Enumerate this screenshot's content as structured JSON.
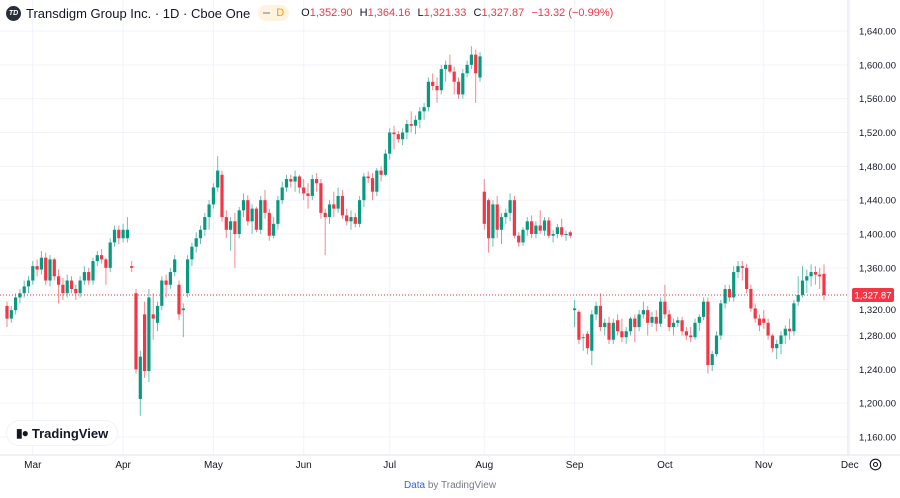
{
  "header": {
    "logo_text": "TD",
    "title": "Transdigm Group Inc. · 1D · Cboe One",
    "badge": "D",
    "ohlc": {
      "o_label": "O",
      "o": "1,352.90",
      "h_label": "H",
      "h": "1,364.16",
      "l_label": "L",
      "l": "1,321.33",
      "c_label": "C",
      "c": "1,327.87",
      "change": "−13.32 (−0.99%)"
    }
  },
  "watermark": {
    "text": "TradingView",
    "icon": "tradingview-logo-icon"
  },
  "footer": {
    "link": "Data",
    "text": " by TradingView"
  },
  "icons": {
    "settings": "gear-icon"
  },
  "colors": {
    "up": "#089981",
    "down": "#f23645",
    "grid": "#f0f3fa",
    "axis_text": "#131722",
    "price_line": "#f23645"
  },
  "chart_data": {
    "type": "candlestick",
    "y_ticks": [
      "1,160.00",
      "1,200.00",
      "1,240.00",
      "1,280.00",
      "1,320.00",
      "1,360.00",
      "1,400.00",
      "1,440.00",
      "1,480.00",
      "1,520.00",
      "1,560.00",
      "1,600.00",
      "1,640.00"
    ],
    "ylim": [
      1160,
      1640
    ],
    "x_ticks": [
      {
        "label": "Mar",
        "date": "2025-03"
      },
      {
        "label": "Apr",
        "date": "2025-04"
      },
      {
        "label": "May",
        "date": "2025-05"
      },
      {
        "label": "Jun",
        "date": "2025-06"
      },
      {
        "label": "Jul",
        "date": "2025-07"
      },
      {
        "label": "Aug",
        "date": "2025-08"
      },
      {
        "label": "Sep",
        "date": "2025-09"
      },
      {
        "label": "Oct",
        "date": "2025-10"
      },
      {
        "label": "Nov",
        "date": "2025-11"
      },
      {
        "label": "Dec",
        "date": "2025-12"
      }
    ],
    "last_price": 1327.87,
    "last_price_label": "1,327.87",
    "grid": true,
    "columns": [
      "date",
      "open",
      "high",
      "low",
      "close"
    ],
    "candles": [
      [
        "02-21",
        1315,
        1320,
        1290,
        1300
      ],
      [
        "02-24",
        1300,
        1315,
        1295,
        1310
      ],
      [
        "02-25",
        1310,
        1330,
        1305,
        1325
      ],
      [
        "02-26",
        1325,
        1335,
        1318,
        1330
      ],
      [
        "02-27",
        1330,
        1345,
        1325,
        1338
      ],
      [
        "02-28",
        1338,
        1350,
        1330,
        1345
      ],
      [
        "03-03",
        1345,
        1368,
        1340,
        1362
      ],
      [
        "03-04",
        1362,
        1370,
        1350,
        1358
      ],
      [
        "03-05",
        1358,
        1380,
        1352,
        1372
      ],
      [
        "03-06",
        1372,
        1378,
        1340,
        1345
      ],
      [
        "03-07",
        1345,
        1375,
        1338,
        1370
      ],
      [
        "03-10",
        1370,
        1372,
        1345,
        1350
      ],
      [
        "03-11",
        1350,
        1358,
        1318,
        1340
      ],
      [
        "03-12",
        1340,
        1348,
        1322,
        1330
      ],
      [
        "03-13",
        1330,
        1352,
        1325,
        1345
      ],
      [
        "03-14",
        1345,
        1350,
        1330,
        1335
      ],
      [
        "03-17",
        1335,
        1340,
        1322,
        1330
      ],
      [
        "03-18",
        1330,
        1350,
        1325,
        1345
      ],
      [
        "03-19",
        1345,
        1362,
        1340,
        1355
      ],
      [
        "03-20",
        1355,
        1360,
        1340,
        1345
      ],
      [
        "03-21",
        1345,
        1372,
        1340,
        1368
      ],
      [
        "03-24",
        1368,
        1380,
        1362,
        1375
      ],
      [
        "03-25",
        1375,
        1382,
        1365,
        1370
      ],
      [
        "03-26",
        1370,
        1372,
        1340,
        1360
      ],
      [
        "03-27",
        1360,
        1395,
        1355,
        1390
      ],
      [
        "03-28",
        1390,
        1410,
        1385,
        1405
      ],
      [
        "03-31",
        1405,
        1410,
        1388,
        1395
      ],
      [
        "04-01",
        1395,
        1412,
        1390,
        1405
      ],
      [
        "04-02",
        1395,
        1420,
        1390,
        1405
      ],
      [
        "04-03",
        1362,
        1368,
        1355,
        1360
      ],
      [
        "04-04",
        1330,
        1335,
        1235,
        1240
      ],
      [
        "04-07",
        1205,
        1262,
        1185,
        1255
      ],
      [
        "04-08",
        1305,
        1320,
        1230,
        1238
      ],
      [
        "04-09",
        1238,
        1335,
        1225,
        1325
      ],
      [
        "04-10",
        1305,
        1330,
        1275,
        1300
      ],
      [
        "04-11",
        1295,
        1320,
        1285,
        1315
      ],
      [
        "04-14",
        1315,
        1350,
        1310,
        1345
      ],
      [
        "04-15",
        1345,
        1352,
        1325,
        1340
      ],
      [
        "04-16",
        1340,
        1360,
        1335,
        1355
      ],
      [
        "04-17",
        1355,
        1375,
        1350,
        1370
      ],
      [
        "04-21",
        1340,
        1345,
        1298,
        1305
      ],
      [
        "04-22",
        1310,
        1318,
        1278,
        1312
      ],
      [
        "04-23",
        1330,
        1375,
        1325,
        1370
      ],
      [
        "04-24",
        1370,
        1390,
        1362,
        1385
      ],
      [
        "04-25",
        1385,
        1402,
        1378,
        1395
      ],
      [
        "04-28",
        1395,
        1410,
        1388,
        1405
      ],
      [
        "04-29",
        1405,
        1425,
        1398,
        1420
      ],
      [
        "04-30",
        1420,
        1440,
        1405,
        1435
      ],
      [
        "05-01",
        1435,
        1460,
        1430,
        1455
      ],
      [
        "05-02",
        1455,
        1492,
        1450,
        1475
      ],
      [
        "05-05",
        1470,
        1475,
        1415,
        1420
      ],
      [
        "05-06",
        1420,
        1428,
        1395,
        1405
      ],
      [
        "05-07",
        1405,
        1420,
        1380,
        1415
      ],
      [
        "05-08",
        1415,
        1425,
        1360,
        1400
      ],
      [
        "05-09",
        1400,
        1432,
        1395,
        1428
      ],
      [
        "05-12",
        1428,
        1448,
        1420,
        1440
      ],
      [
        "05-13",
        1440,
        1446,
        1410,
        1415
      ],
      [
        "05-14",
        1415,
        1435,
        1400,
        1430
      ],
      [
        "05-15",
        1430,
        1432,
        1402,
        1405
      ],
      [
        "05-16",
        1405,
        1445,
        1400,
        1440
      ],
      [
        "05-19",
        1440,
        1452,
        1418,
        1425
      ],
      [
        "05-20",
        1425,
        1430,
        1392,
        1398
      ],
      [
        "05-21",
        1398,
        1420,
        1395,
        1412
      ],
      [
        "05-22",
        1412,
        1445,
        1405,
        1440
      ],
      [
        "05-23",
        1440,
        1462,
        1435,
        1455
      ],
      [
        "05-27",
        1455,
        1470,
        1450,
        1465
      ],
      [
        "05-28",
        1465,
        1470,
        1455,
        1462
      ],
      [
        "05-29",
        1462,
        1475,
        1450,
        1468
      ],
      [
        "05-30",
        1468,
        1470,
        1448,
        1455
      ],
      [
        "06-02",
        1455,
        1465,
        1440,
        1448
      ],
      [
        "06-03",
        1448,
        1460,
        1430,
        1445
      ],
      [
        "06-04",
        1445,
        1470,
        1440,
        1465
      ],
      [
        "06-05",
        1465,
        1472,
        1450,
        1460
      ],
      [
        "06-06",
        1460,
        1465,
        1418,
        1425
      ],
      [
        "06-09",
        1425,
        1430,
        1375,
        1420
      ],
      [
        "06-10",
        1420,
        1440,
        1412,
        1435
      ],
      [
        "06-11",
        1435,
        1450,
        1420,
        1430
      ],
      [
        "06-12",
        1430,
        1455,
        1425,
        1445
      ],
      [
        "06-13",
        1445,
        1452,
        1418,
        1422
      ],
      [
        "06-16",
        1422,
        1430,
        1410,
        1415
      ],
      [
        "06-17",
        1415,
        1428,
        1405,
        1420
      ],
      [
        "06-18",
        1420,
        1425,
        1408,
        1412
      ],
      [
        "06-20",
        1412,
        1445,
        1408,
        1440
      ],
      [
        "06-23",
        1440,
        1472,
        1432,
        1468
      ],
      [
        "06-24",
        1468,
        1474,
        1460,
        1466
      ],
      [
        "06-25",
        1466,
        1472,
        1440,
        1450
      ],
      [
        "06-26",
        1450,
        1478,
        1445,
        1475
      ],
      [
        "06-27",
        1475,
        1480,
        1462,
        1470
      ],
      [
        "06-30",
        1470,
        1500,
        1468,
        1495
      ],
      [
        "07-01",
        1495,
        1525,
        1488,
        1520
      ],
      [
        "07-02",
        1520,
        1528,
        1500,
        1518
      ],
      [
        "07-03",
        1518,
        1522,
        1508,
        1512
      ],
      [
        "07-07",
        1512,
        1525,
        1505,
        1520
      ],
      [
        "07-08",
        1520,
        1535,
        1512,
        1530
      ],
      [
        "07-09",
        1530,
        1545,
        1520,
        1528
      ],
      [
        "07-10",
        1528,
        1540,
        1518,
        1535
      ],
      [
        "07-11",
        1535,
        1550,
        1525,
        1545
      ],
      [
        "07-14",
        1545,
        1555,
        1535,
        1550
      ],
      [
        "07-15",
        1550,
        1585,
        1545,
        1580
      ],
      [
        "07-16",
        1580,
        1590,
        1570,
        1575
      ],
      [
        "07-17",
        1575,
        1585,
        1555,
        1570
      ],
      [
        "07-18",
        1570,
        1600,
        1565,
        1595
      ],
      [
        "07-21",
        1595,
        1605,
        1580,
        1600
      ],
      [
        "07-22",
        1600,
        1612,
        1590,
        1592
      ],
      [
        "07-23",
        1592,
        1598,
        1565,
        1580
      ],
      [
        "07-24",
        1580,
        1585,
        1560,
        1565
      ],
      [
        "07-25",
        1565,
        1595,
        1560,
        1590
      ],
      [
        "07-28",
        1590,
        1605,
        1585,
        1600
      ],
      [
        "07-29",
        1600,
        1622,
        1595,
        1612
      ],
      [
        "07-30",
        1612,
        1618,
        1555,
        1590
      ],
      [
        "07-31",
        1585,
        1615,
        1580,
        1610
      ],
      [
        "08-01",
        1450,
        1465,
        1405,
        1412
      ],
      [
        "08-04",
        1440,
        1442,
        1378,
        1395
      ],
      [
        "08-05",
        1395,
        1440,
        1385,
        1435
      ],
      [
        "08-06",
        1435,
        1445,
        1395,
        1405
      ],
      [
        "08-07",
        1405,
        1425,
        1388,
        1420
      ],
      [
        "08-08",
        1420,
        1430,
        1412,
        1425
      ],
      [
        "08-11",
        1425,
        1448,
        1415,
        1440
      ],
      [
        "08-12",
        1440,
        1445,
        1395,
        1398
      ],
      [
        "08-13",
        1398,
        1402,
        1385,
        1390
      ],
      [
        "08-14",
        1390,
        1408,
        1386,
        1405
      ],
      [
        "08-15",
        1405,
        1420,
        1398,
        1415
      ],
      [
        "08-18",
        1415,
        1422,
        1395,
        1400
      ],
      [
        "08-19",
        1400,
        1415,
        1395,
        1410
      ],
      [
        "08-20",
        1410,
        1428,
        1400,
        1404
      ],
      [
        "08-21",
        1404,
        1420,
        1398,
        1416
      ],
      [
        "08-22",
        1416,
        1420,
        1395,
        1398
      ],
      [
        "08-25",
        1398,
        1405,
        1390,
        1400
      ],
      [
        "08-26",
        1400,
        1412,
        1395,
        1408
      ],
      [
        "08-27",
        1408,
        1418,
        1396,
        1399
      ],
      [
        "08-28",
        1399,
        1404,
        1392,
        1400
      ],
      [
        "08-29",
        1402,
        1404,
        1395,
        1398
      ],
      [
        "09-02",
        1310,
        1322,
        1290,
        1312
      ],
      [
        "09-03",
        1308,
        1310,
        1270,
        1275
      ],
      [
        "09-04",
        1278,
        1282,
        1262,
        1278
      ],
      [
        "09-05",
        1282,
        1285,
        1258,
        1265
      ],
      [
        "09-08",
        1262,
        1310,
        1245,
        1305
      ],
      [
        "09-09",
        1305,
        1320,
        1298,
        1315
      ],
      [
        "09-10",
        1315,
        1330,
        1285,
        1290
      ],
      [
        "09-11",
        1290,
        1300,
        1280,
        1295
      ],
      [
        "09-12",
        1295,
        1302,
        1270,
        1275
      ],
      [
        "09-15",
        1275,
        1300,
        1270,
        1295
      ],
      [
        "09-16",
        1298,
        1305,
        1280,
        1285
      ],
      [
        "09-17",
        1285,
        1300,
        1272,
        1278
      ],
      [
        "09-18",
        1278,
        1290,
        1270,
        1285
      ],
      [
        "09-19",
        1285,
        1302,
        1280,
        1300
      ],
      [
        "09-22",
        1300,
        1305,
        1272,
        1290
      ],
      [
        "09-23",
        1290,
        1310,
        1285,
        1305
      ],
      [
        "09-24",
        1305,
        1320,
        1300,
        1310
      ],
      [
        "09-25",
        1310,
        1315,
        1280,
        1295
      ],
      [
        "09-26",
        1295,
        1308,
        1290,
        1302
      ],
      [
        "09-29",
        1302,
        1310,
        1285,
        1294
      ],
      [
        "09-30",
        1294,
        1325,
        1290,
        1320
      ],
      [
        "10-01",
        1320,
        1340,
        1300,
        1305
      ],
      [
        "10-02",
        1305,
        1310,
        1285,
        1290
      ],
      [
        "10-03",
        1290,
        1300,
        1280,
        1295
      ],
      [
        "10-06",
        1295,
        1302,
        1290,
        1298
      ],
      [
        "10-07",
        1298,
        1302,
        1280,
        1285
      ],
      [
        "10-08",
        1285,
        1290,
        1275,
        1280
      ],
      [
        "10-09",
        1280,
        1290,
        1272,
        1278
      ],
      [
        "10-10",
        1278,
        1300,
        1275,
        1295
      ],
      [
        "10-13",
        1295,
        1305,
        1285,
        1302
      ],
      [
        "10-14",
        1302,
        1325,
        1298,
        1320
      ],
      [
        "10-15",
        1320,
        1325,
        1235,
        1245
      ],
      [
        "10-16",
        1245,
        1262,
        1238,
        1258
      ],
      [
        "10-17",
        1258,
        1285,
        1255,
        1280
      ],
      [
        "10-20",
        1280,
        1322,
        1275,
        1318
      ],
      [
        "10-21",
        1318,
        1340,
        1312,
        1335
      ],
      [
        "10-22",
        1335,
        1340,
        1320,
        1325
      ],
      [
        "10-23",
        1325,
        1362,
        1320,
        1355
      ],
      [
        "10-24",
        1355,
        1368,
        1348,
        1362
      ],
      [
        "10-27",
        1362,
        1368,
        1345,
        1360
      ],
      [
        "10-28",
        1360,
        1365,
        1330,
        1335
      ],
      [
        "10-29",
        1335,
        1340,
        1308,
        1312
      ],
      [
        "10-30",
        1312,
        1318,
        1295,
        1300
      ],
      [
        "10-31",
        1300,
        1305,
        1285,
        1292
      ],
      [
        "11-03",
        1300,
        1310,
        1288,
        1295
      ],
      [
        "11-04",
        1295,
        1300,
        1275,
        1280
      ],
      [
        "11-05",
        1280,
        1282,
        1260,
        1265
      ],
      [
        "11-06",
        1265,
        1275,
        1252,
        1270
      ],
      [
        "11-07",
        1270,
        1285,
        1258,
        1280
      ],
      [
        "11-10",
        1280,
        1292,
        1270,
        1288
      ],
      [
        "11-11",
        1288,
        1300,
        1275,
        1285
      ],
      [
        "11-12",
        1285,
        1322,
        1280,
        1318
      ],
      [
        "11-13",
        1320,
        1350,
        1315,
        1328
      ],
      [
        "11-14",
        1328,
        1362,
        1325,
        1345
      ],
      [
        "11-17",
        1345,
        1358,
        1330,
        1350
      ],
      [
        "11-18",
        1350,
        1364,
        1338,
        1355
      ],
      [
        "11-19",
        1355,
        1362,
        1340,
        1352
      ],
      [
        "11-20",
        1352,
        1360,
        1335,
        1350
      ],
      [
        "11-21",
        1352.9,
        1364.16,
        1321.33,
        1327.87
      ]
    ]
  }
}
